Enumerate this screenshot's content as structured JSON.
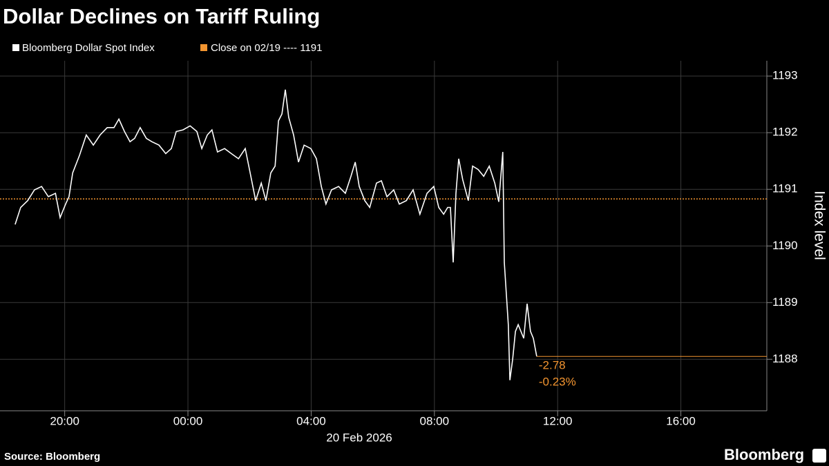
{
  "chart_data": {
    "type": "line",
    "title": "Dollar Declines on Tariff Ruling",
    "source": "Source: Bloomberg",
    "brand": "Bloomberg",
    "xlabel": "20 Feb 2026",
    "ylabel": "Index level",
    "x": [
      -5.61,
      -5.43,
      -5.2,
      -4.98,
      -4.75,
      -4.53,
      -4.3,
      -4.15,
      -3.97,
      -3.86,
      -3.74,
      -3.52,
      -3.3,
      -3.07,
      -2.85,
      -2.62,
      -2.4,
      -2.24,
      -2.06,
      -1.88,
      -1.73,
      -1.55,
      -1.35,
      -1.17,
      -0.94,
      -0.72,
      -0.54,
      -0.38,
      -0.16,
      0.07,
      0.29,
      0.45,
      0.63,
      0.78,
      0.96,
      1.19,
      1.41,
      1.64,
      1.86,
      2.02,
      2.2,
      2.38,
      2.53,
      2.69,
      2.83,
      2.94,
      3.05,
      3.16,
      3.27,
      3.43,
      3.59,
      3.77,
      3.99,
      4.17,
      4.33,
      4.48,
      4.66,
      4.89,
      5.11,
      5.29,
      5.43,
      5.56,
      5.74,
      5.9,
      6.12,
      6.28,
      6.46,
      6.68,
      6.86,
      7.09,
      7.31,
      7.53,
      7.76,
      7.98,
      8.14,
      8.3,
      8.43,
      8.52,
      8.61,
      8.7,
      8.79,
      8.92,
      9.1,
      9.24,
      9.42,
      9.6,
      9.78,
      9.96,
      10.09,
      10.22,
      10.27,
      10.4,
      10.45,
      10.54,
      10.63,
      10.72,
      10.9,
      11.01,
      11.12,
      11.21,
      11.32
    ],
    "series": [
      {
        "name": "Bloomberg Dollar Spot Index",
        "color": "#ffffff",
        "values": [
          1190.38,
          1190.68,
          1190.8,
          1190.99,
          1191.05,
          1190.87,
          1190.93,
          1190.5,
          1190.74,
          1190.87,
          1191.29,
          1191.6,
          1191.96,
          1191.78,
          1191.96,
          1192.09,
          1192.09,
          1192.24,
          1192.02,
          1191.84,
          1191.9,
          1192.09,
          1191.9,
          1191.84,
          1191.78,
          1191.63,
          1191.72,
          1192.02,
          1192.05,
          1192.12,
          1192.02,
          1191.72,
          1191.96,
          1192.05,
          1191.66,
          1191.72,
          1191.63,
          1191.54,
          1191.72,
          1191.29,
          1190.8,
          1191.11,
          1190.8,
          1191.29,
          1191.41,
          1192.21,
          1192.33,
          1192.76,
          1192.27,
          1191.96,
          1191.48,
          1191.78,
          1191.72,
          1191.54,
          1191.05,
          1190.74,
          1190.99,
          1191.05,
          1190.93,
          1191.23,
          1191.48,
          1191.05,
          1190.8,
          1190.68,
          1191.11,
          1191.15,
          1190.87,
          1190.99,
          1190.74,
          1190.8,
          1190.99,
          1190.56,
          1190.93,
          1191.05,
          1190.68,
          1190.56,
          1190.68,
          1190.68,
          1189.71,
          1190.93,
          1191.54,
          1191.17,
          1190.8,
          1191.41,
          1191.35,
          1191.23,
          1191.41,
          1191.11,
          1190.78,
          1191.66,
          1189.71,
          1188.61,
          1187.63,
          1188.0,
          1188.49,
          1188.61,
          1188.37,
          1188.98,
          1188.49,
          1188.37,
          1188.05
        ]
      }
    ],
    "reference_line": {
      "name": "Close on 02/19 ---- 1191",
      "value": 1190.83,
      "color": "#f39530"
    },
    "annotations": [
      -2.78,
      {
        "value": -0.23,
        "label": "-0.23%"
      }
    ],
    "xlim": [
      -6.1,
      18.79
    ],
    "xticks": [
      {
        "value": -4,
        "label": "20:00"
      },
      {
        "value": 0,
        "label": "00:00"
      },
      {
        "value": 4,
        "label": "04:00"
      },
      {
        "value": 8,
        "label": "08:00"
      },
      {
        "value": 12,
        "label": "12:00"
      },
      {
        "value": 16,
        "label": "16:00"
      }
    ],
    "ylim": [
      1187.09,
      1193.27
    ],
    "yticks": [
      1188,
      1189,
      1190,
      1191,
      1192,
      1193
    ],
    "grid": true
  }
}
